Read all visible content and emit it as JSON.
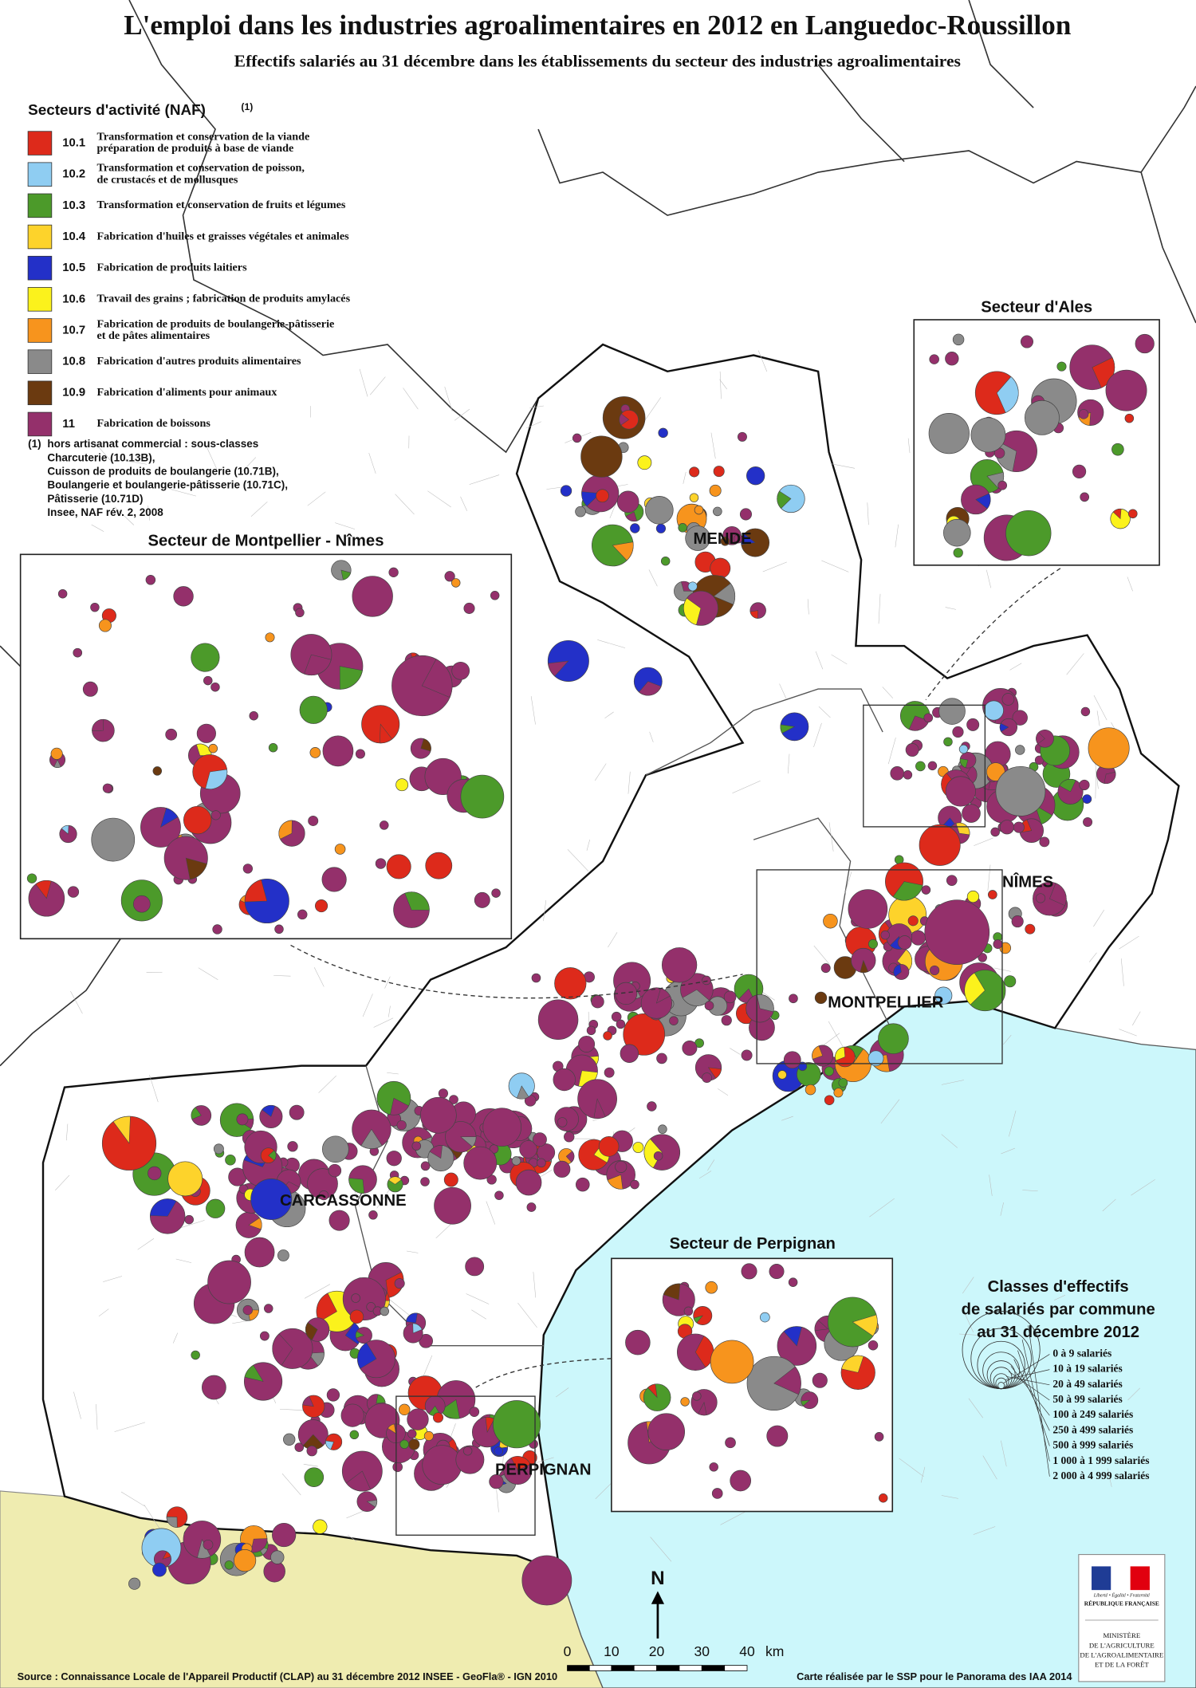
{
  "title": "L'emploi dans les industries agroalimentaires en 2012 en Languedoc-Roussillon",
  "subtitle": "Effectifs salariés au 31 décembre  dans les établissements du secteur des industries agroalimentaires",
  "legend": {
    "title": "Secteurs d'activité (NAF)",
    "title_note": "(1)",
    "items": [
      {
        "code": "10.1",
        "label": [
          "Transformation et conservation de la viande",
          "préparation de produits à base de viande"
        ],
        "color": "#dd2a1b"
      },
      {
        "code": "10.2",
        "label": [
          "Transformation et conservation de poisson,",
          "de crustacés et de mollusques"
        ],
        "color": "#8fcdf2"
      },
      {
        "code": "10.3",
        "label": [
          "Transformation et conservation de fruits et légumes"
        ],
        "color": "#4c9a2a"
      },
      {
        "code": "10.4",
        "label": [
          "Fabrication d'huiles et graisses végétales et animales"
        ],
        "color": "#fdd32b"
      },
      {
        "code": "10.5",
        "label": [
          "Fabrication de produits laitiers"
        ],
        "color": "#2330c8"
      },
      {
        "code": "10.6",
        "label": [
          "Travail des grains ; fabrication de produits amylacés"
        ],
        "color": "#fbf21c"
      },
      {
        "code": "10.7",
        "label": [
          "Fabrication de produits de boulangerie-pâtisserie",
          "et de pâtes alimentaires"
        ],
        "color": "#f7941d"
      },
      {
        "code": "10.8",
        "label": [
          "Fabrication d'autres produits alimentaires"
        ],
        "color": "#8a8a8a"
      },
      {
        "code": "10.9",
        "label": [
          "Fabrication d'aliments pour animaux"
        ],
        "color": "#6b3a10"
      },
      {
        "code": "11",
        "label": [
          "Fabrication de boissons"
        ],
        "color": "#94306b"
      }
    ]
  },
  "footnote": {
    "marker": "(1)",
    "lines": [
      "hors artisanat commercial : sous-classes",
      "Charcuterie (10.13B),",
      "Cuisson de produits de boulangerie (10.71B),",
      "Boulangerie et boulangerie-pâtisserie (10.71C),",
      "Pâtisserie (10.71D)",
      "Insee, NAF rév. 2, 2008"
    ]
  },
  "insets": [
    {
      "title": "Secteur de Montpellier - Nîmes"
    },
    {
      "title": "Secteur d'Ales"
    },
    {
      "title": "Secteur de Perpignan"
    }
  ],
  "cities": [
    "MENDE",
    "NÎMES",
    "MONTPELLIER",
    "CARCASSONNE",
    "PERPIGNAN"
  ],
  "size_legend": {
    "title": [
      "Classes d'effectifs",
      "de salariés par commune",
      "au 31 décembre 2012"
    ],
    "classes": [
      "0 à 9 salariés",
      "10 à 19 salariés",
      "20 à 49 salariés",
      "50 à 99 salariés",
      "100 à 249 salariés",
      "250 à 499 salariés",
      "500 à 999 salariés",
      "1 000 à 1 999 salariés",
      "2 000 à 4 999 salariés"
    ]
  },
  "north": "N",
  "scale": {
    "ticks": [
      0,
      10,
      20,
      30,
      40
    ],
    "unit": "km"
  },
  "source": "Source : Connaissance Locale de l'Appareil Productif (CLAP) au 31 décembre 2012  INSEE - GeoFla® - IGN 2010",
  "credit": "Carte réalisée par le SSP pour le Panorama des IAA 2014",
  "logo": {
    "motto": "Liberté • Égalité • Fraternité",
    "republic": "RÉPUBLIQUE FRANÇAISE",
    "ministry": [
      "MINISTÈRE",
      "DE L'AGRICULTURE",
      "DE L'AGROALIMENTAIRE",
      "ET DE LA FORÊT"
    ]
  }
}
